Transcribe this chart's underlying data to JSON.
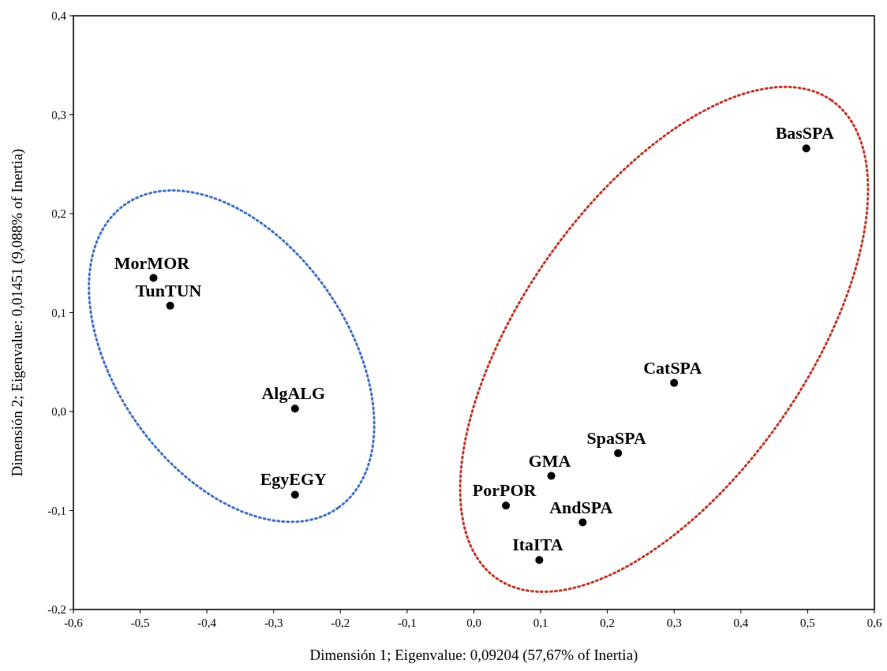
{
  "chart_data": {
    "type": "scatter",
    "xlabel": "Dimensión 1; Eigenvalue: 0,09204 (57,67% of Inertia)",
    "ylabel": "Dimensión 2; Eigenvalue: 0,01451 (9,088% of Inertia)",
    "xlim": [
      -0.6,
      0.6
    ],
    "ylim": [
      -0.2,
      0.4
    ],
    "xticks": [
      {
        "value": -0.6,
        "label": "-0,6"
      },
      {
        "value": -0.5,
        "label": "-0,5"
      },
      {
        "value": -0.4,
        "label": "-0,4"
      },
      {
        "value": -0.3,
        "label": "-0,3"
      },
      {
        "value": -0.2,
        "label": "-0,2"
      },
      {
        "value": -0.1,
        "label": "-0,1"
      },
      {
        "value": 0,
        "label": "0,0"
      },
      {
        "value": 0.1,
        "label": "0,1"
      },
      {
        "value": 0.2,
        "label": "0,2"
      },
      {
        "value": 0.3,
        "label": "0,3"
      },
      {
        "value": 0.4,
        "label": "0,4"
      },
      {
        "value": 0.5,
        "label": "0,5"
      },
      {
        "value": 0.6,
        "label": "0,6"
      }
    ],
    "yticks": [
      {
        "value": -0.2,
        "label": "-0,2"
      },
      {
        "value": -0.1,
        "label": "-0,1"
      },
      {
        "value": 0,
        "label": "0,0"
      },
      {
        "value": 0.1,
        "label": "0,1"
      },
      {
        "value": 0.2,
        "label": "0,2"
      },
      {
        "value": 0.3,
        "label": "0,3"
      },
      {
        "value": 0.4,
        "label": "0,4"
      }
    ],
    "grid": false,
    "marker": "circle",
    "series": [
      {
        "name": "MorMOR",
        "color": "#000000",
        "x": [
          -0.48
        ],
        "values": [
          0.135
        ]
      },
      {
        "name": "TunTUN",
        "color": "#000000",
        "x": [
          -0.455
        ],
        "values": [
          0.107
        ]
      },
      {
        "name": "AlgALG",
        "color": "#000000",
        "x": [
          -0.268
        ],
        "values": [
          0.003
        ]
      },
      {
        "name": "EgyEGY",
        "color": "#000000",
        "x": [
          -0.268
        ],
        "values": [
          -0.084
        ]
      },
      {
        "name": "GMA",
        "color": "#000000",
        "x": [
          0.116
        ],
        "values": [
          -0.065
        ]
      },
      {
        "name": "PorPOR",
        "color": "#000000",
        "x": [
          0.048
        ],
        "values": [
          -0.095
        ]
      },
      {
        "name": "AndSPA",
        "color": "#000000",
        "x": [
          0.163
        ],
        "values": [
          -0.112
        ]
      },
      {
        "name": "ItaITA",
        "color": "#000000",
        "x": [
          0.098
        ],
        "values": [
          -0.15
        ]
      },
      {
        "name": "SpaSPA",
        "color": "#000000",
        "x": [
          0.216
        ],
        "values": [
          -0.042
        ]
      },
      {
        "name": "CatSPA",
        "color": "#000000",
        "x": [
          0.3
        ],
        "values": [
          0.029
        ]
      },
      {
        "name": "BasSPA",
        "color": "#000000",
        "x": [
          0.498
        ],
        "values": [
          0.266
        ]
      }
    ]
  }
}
